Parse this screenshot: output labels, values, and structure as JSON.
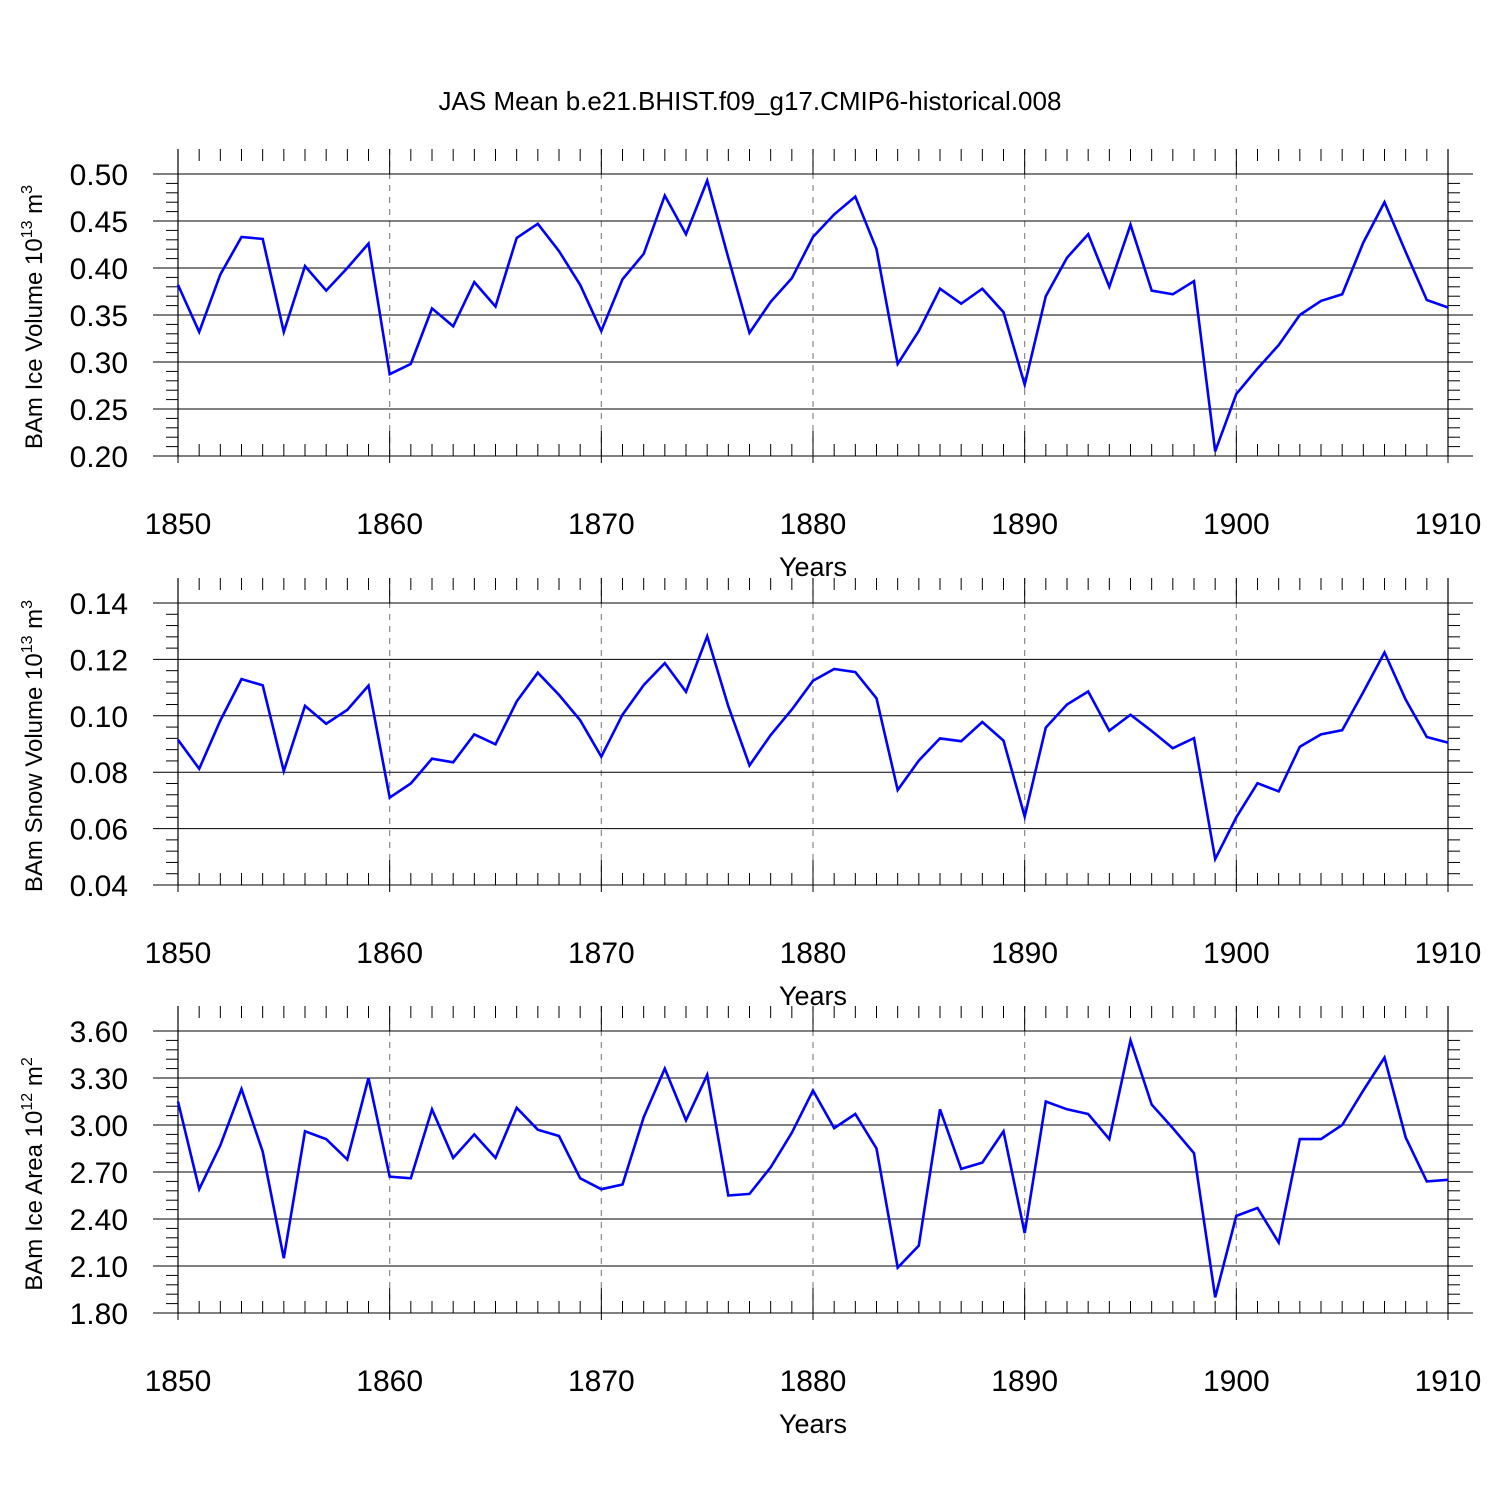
{
  "figure": {
    "title": "JAS Mean b.e21.BHIST.f09_g17.CMIP6-historical.008"
  },
  "colors": {
    "series": "#0000ff",
    "axis": "#000000",
    "gridline": "#888888"
  },
  "chart_data": [
    {
      "type": "line",
      "xlabel": "Years",
      "ylabel": {
        "text": "BAm Ice Volume 10",
        "sup": "13",
        "unit": " m",
        "unit_sup": "3"
      },
      "xlim": [
        1850,
        1910
      ],
      "ylim": [
        0.2,
        0.5
      ],
      "xticks": [
        "1850",
        "1860",
        "1870",
        "1880",
        "1890",
        "1900",
        "1910"
      ],
      "yticks": [
        "0.20",
        "0.25",
        "0.30",
        "0.35",
        "0.40",
        "0.45",
        "0.50"
      ],
      "x": [
        1850,
        1851,
        1852,
        1853,
        1854,
        1855,
        1856,
        1857,
        1858,
        1859,
        1860,
        1861,
        1862,
        1863,
        1864,
        1865,
        1866,
        1867,
        1868,
        1869,
        1870,
        1871,
        1872,
        1873,
        1874,
        1875,
        1876,
        1877,
        1878,
        1879,
        1880,
        1881,
        1882,
        1883,
        1884,
        1885,
        1886,
        1887,
        1888,
        1889,
        1890,
        1891,
        1892,
        1893,
        1894,
        1895,
        1896,
        1897,
        1898,
        1899,
        1900,
        1901,
        1902,
        1903,
        1904,
        1905,
        1906,
        1907,
        1908,
        1909,
        1910
      ],
      "series": [
        {
          "values": [
            0.382,
            0.332,
            0.393,
            0.433,
            0.431,
            0.332,
            0.402,
            0.376,
            0.4,
            0.426,
            0.287,
            0.298,
            0.357,
            0.338,
            0.385,
            0.359,
            0.432,
            0.447,
            0.418,
            0.382,
            0.333,
            0.388,
            0.415,
            0.477,
            0.436,
            0.493,
            0.411,
            0.331,
            0.364,
            0.389,
            0.433,
            0.457,
            0.476,
            0.42,
            0.298,
            0.333,
            0.378,
            0.362,
            0.378,
            0.353,
            0.276,
            0.37,
            0.411,
            0.436,
            0.38,
            0.446,
            0.376,
            0.372,
            0.386,
            0.205,
            0.266,
            0.293,
            0.318,
            0.35,
            0.365,
            0.372,
            0.427,
            0.47,
            0.417,
            0.366,
            0.358
          ]
        }
      ]
    },
    {
      "type": "line",
      "xlabel": "Years",
      "ylabel": {
        "text": "BAm Snow Volume 10",
        "sup": "13",
        "unit": " m",
        "unit_sup": "3"
      },
      "xlim": [
        1850,
        1910
      ],
      "ylim": [
        0.04,
        0.14
      ],
      "xticks": [
        "1850",
        "1860",
        "1870",
        "1880",
        "1890",
        "1900",
        "1910"
      ],
      "yticks": [
        "0.04",
        "0.06",
        "0.08",
        "0.10",
        "0.12",
        "0.14"
      ],
      "x": [
        1850,
        1851,
        1852,
        1853,
        1854,
        1855,
        1856,
        1857,
        1858,
        1859,
        1860,
        1861,
        1862,
        1863,
        1864,
        1865,
        1866,
        1867,
        1868,
        1869,
        1870,
        1871,
        1872,
        1873,
        1874,
        1875,
        1876,
        1877,
        1878,
        1879,
        1880,
        1881,
        1882,
        1883,
        1884,
        1885,
        1886,
        1887,
        1888,
        1889,
        1890,
        1891,
        1892,
        1893,
        1894,
        1895,
        1896,
        1897,
        1898,
        1899,
        1900,
        1901,
        1902,
        1903,
        1904,
        1905,
        1906,
        1907,
        1908,
        1909,
        1910
      ],
      "series": [
        {
          "values": [
            0.0915,
            0.0812,
            0.0983,
            0.113,
            0.1108,
            0.0804,
            0.1035,
            0.0972,
            0.1021,
            0.1107,
            0.071,
            0.076,
            0.0848,
            0.0835,
            0.0934,
            0.0899,
            0.1051,
            0.1153,
            0.1074,
            0.0984,
            0.0855,
            0.1004,
            0.1109,
            0.1187,
            0.1085,
            0.1282,
            0.1034,
            0.0824,
            0.0932,
            0.1022,
            0.1124,
            0.1166,
            0.1155,
            0.1062,
            0.0737,
            0.0841,
            0.092,
            0.091,
            0.0978,
            0.0912,
            0.0643,
            0.0958,
            0.104,
            0.1086,
            0.0947,
            0.1004,
            0.0946,
            0.0885,
            0.0921,
            0.0492,
            0.064,
            0.0761,
            0.0732,
            0.089,
            0.0934,
            0.0949,
            0.1084,
            0.1225,
            0.1057,
            0.0925,
            0.0905
          ]
        }
      ]
    },
    {
      "type": "line",
      "xlabel": "Years",
      "ylabel": {
        "text": "BAm Ice Area 10",
        "sup": "12",
        "unit": " m",
        "unit_sup": "2"
      },
      "xlim": [
        1850,
        1910
      ],
      "ylim": [
        1.8,
        3.6
      ],
      "xticks": [
        "1850",
        "1860",
        "1870",
        "1880",
        "1890",
        "1900",
        "1910"
      ],
      "yticks": [
        "1.80",
        "2.10",
        "2.40",
        "2.70",
        "3.00",
        "3.30",
        "3.60"
      ],
      "x": [
        1850,
        1851,
        1852,
        1853,
        1854,
        1855,
        1856,
        1857,
        1858,
        1859,
        1860,
        1861,
        1862,
        1863,
        1864,
        1865,
        1866,
        1867,
        1868,
        1869,
        1870,
        1871,
        1872,
        1873,
        1874,
        1875,
        1876,
        1877,
        1878,
        1879,
        1880,
        1881,
        1882,
        1883,
        1884,
        1885,
        1886,
        1887,
        1888,
        1889,
        1890,
        1891,
        1892,
        1893,
        1894,
        1895,
        1896,
        1897,
        1898,
        1899,
        1900,
        1901,
        1902,
        1903,
        1904,
        1905,
        1906,
        1907,
        1908,
        1909,
        1910
      ],
      "series": [
        {
          "values": [
            3.15,
            2.59,
            2.87,
            3.23,
            2.83,
            2.15,
            2.96,
            2.91,
            2.78,
            3.3,
            2.67,
            2.66,
            3.1,
            2.79,
            2.94,
            2.79,
            3.11,
            2.97,
            2.93,
            2.66,
            2.59,
            2.62,
            3.05,
            3.36,
            3.03,
            3.32,
            2.55,
            2.56,
            2.73,
            2.95,
            3.22,
            2.98,
            3.07,
            2.85,
            2.09,
            2.23,
            3.1,
            2.72,
            2.76,
            2.96,
            2.31,
            3.15,
            3.1,
            3.07,
            2.91,
            3.54,
            3.13,
            2.98,
            2.82,
            1.9,
            2.42,
            2.47,
            2.25,
            2.91,
            2.91,
            3.0,
            3.22,
            3.43,
            2.92,
            2.64,
            2.65
          ]
        }
      ]
    }
  ]
}
